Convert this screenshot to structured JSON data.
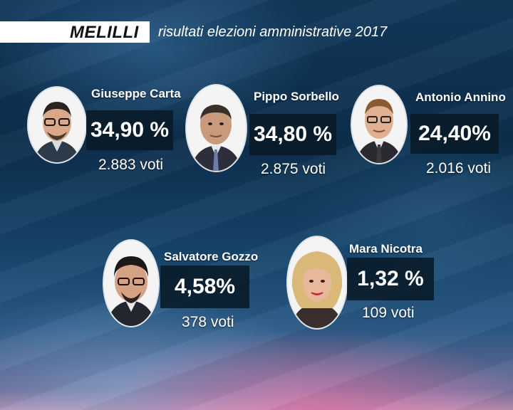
{
  "header": {
    "city": "MELILLI",
    "subtitle": "risultati elezioni amministrative 2017"
  },
  "candidates": [
    {
      "name": "Giuseppe Carta",
      "percent": "34,90 %",
      "votes": "2.883 voti"
    },
    {
      "name": "Pippo Sorbello",
      "percent": "34,80 %",
      "votes": "2.875 voti"
    },
    {
      "name": "Antonio Annino",
      "percent": "24,40%",
      "votes": "2.016 voti"
    },
    {
      "name": "Salvatore Gozzo",
      "percent": "4,58%",
      "votes": "378 voti"
    },
    {
      "name": "Mara Nicotra",
      "percent": "1,32 %",
      "votes": "109 voti"
    }
  ],
  "colors": {
    "percent_box": "#081a28",
    "title_strip": "#ffffff"
  }
}
